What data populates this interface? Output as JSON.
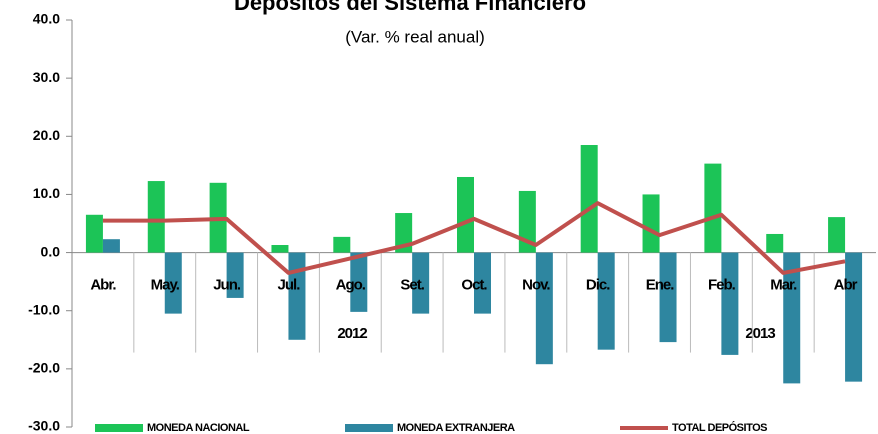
{
  "chart_data": {
    "type": "bar",
    "title": "Depósitos del Sistema Financiero",
    "subtitle": "(Var. % real anual)",
    "categories": [
      "Abr.",
      "May.",
      "Jun.",
      "Jul.",
      "Ago.",
      "Set.",
      "Oct.",
      "Nov.",
      "Dic.",
      "Ene.",
      "Feb.",
      "Mar.",
      "Abr"
    ],
    "annotations": [
      "2012",
      "2013"
    ],
    "series": [
      {
        "name": "MONEDA NACIONAL",
        "color": "#1cc457",
        "kind": "bar",
        "values": [
          6.5,
          12.3,
          12.0,
          1.3,
          2.7,
          6.8,
          13.0,
          10.6,
          18.5,
          10.0,
          15.3,
          3.2,
          6.1
        ]
      },
      {
        "name": "MONEDA EXTRANJERA",
        "color": "#2e86a0",
        "kind": "bar",
        "values": [
          2.3,
          -10.5,
          -7.8,
          -15.0,
          -10.2,
          -10.5,
          -10.5,
          -19.2,
          -16.7,
          -15.4,
          -17.6,
          -22.5,
          -22.2
        ]
      },
      {
        "name": "TOTAL DEPÓSITOS",
        "color": "#c0504d",
        "kind": "line",
        "values": [
          5.5,
          5.5,
          5.8,
          -3.5,
          -1.0,
          1.5,
          5.8,
          1.3,
          8.5,
          3.0,
          6.5,
          -3.5,
          -1.5
        ]
      }
    ],
    "ylim": [
      -30,
      40
    ],
    "yticks": [
      {
        "value": -30,
        "label": "-30.0"
      },
      {
        "value": -20,
        "label": "-20.0"
      },
      {
        "value": -10,
        "label": "-10.0"
      },
      {
        "value": 0,
        "label": "0.0"
      },
      {
        "value": 10,
        "label": "10.0"
      },
      {
        "value": 20,
        "label": "20.0"
      },
      {
        "value": 30,
        "label": "30.0"
      },
      {
        "value": 40,
        "label": "40.0"
      }
    ]
  }
}
